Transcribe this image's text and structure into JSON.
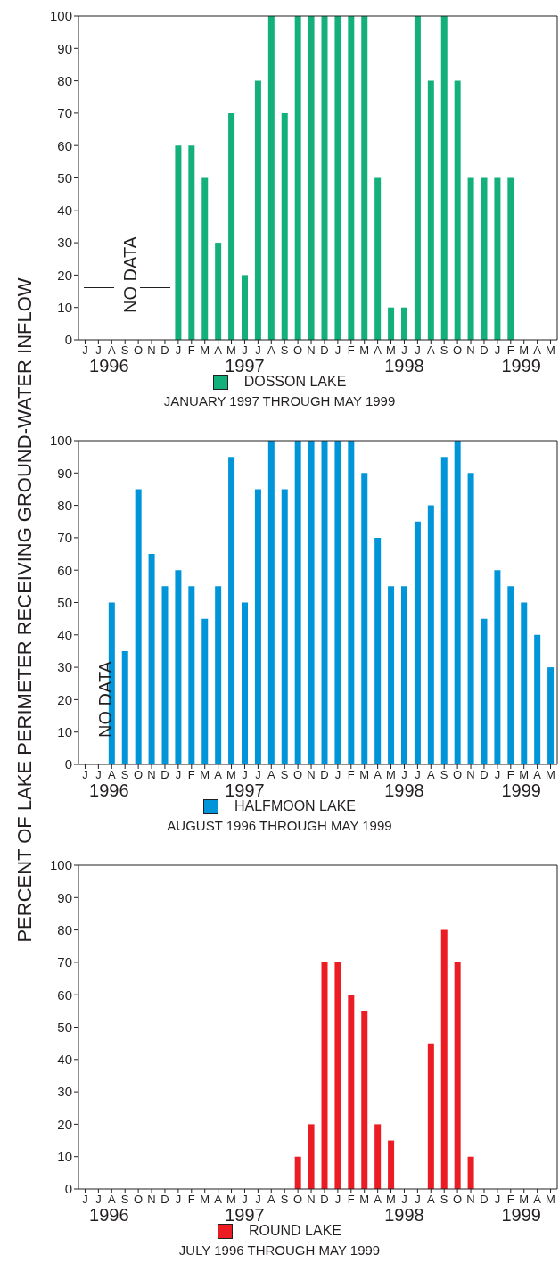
{
  "chart_data": [
    {
      "type": "bar",
      "ylabel": "PERCENT OF LAKE PERIMETER RECEIVING GROUND-WATER INFLOW",
      "subtitle": "JANUARY 1997 THROUGH MAY 1999",
      "categories": [
        "J",
        "J",
        "A",
        "S",
        "O",
        "N",
        "D",
        "J",
        "F",
        "M",
        "A",
        "M",
        "J",
        "J",
        "A",
        "S",
        "O",
        "N",
        "D",
        "J",
        "F",
        "M",
        "A",
        "M",
        "J",
        "J",
        "A",
        "S",
        "O",
        "N",
        "D",
        "J",
        "F",
        "M",
        "A",
        "M"
      ],
      "series": [
        {
          "name": "DOSSON LAKE",
          "color": "#13b07b",
          "values": [
            null,
            null,
            null,
            null,
            null,
            null,
            null,
            60,
            60,
            50,
            30,
            70,
            20,
            80,
            100,
            70,
            100,
            100,
            100,
            100,
            100,
            100,
            50,
            10,
            10,
            100,
            80,
            100,
            80,
            50,
            50,
            50,
            50,
            null,
            null,
            null
          ]
        }
      ],
      "ylim": [
        0,
        100
      ],
      "yticks": [
        0,
        10,
        20,
        30,
        40,
        50,
        60,
        70,
        80,
        90,
        100
      ],
      "legend": "bottom",
      "annotations": [
        "NO DATA",
        "1996",
        "1997",
        "1998",
        "1999"
      ]
    },
    {
      "type": "bar",
      "subtitle": "AUGUST 1996 THROUGH  MAY 1999",
      "categories": [
        "J",
        "J",
        "A",
        "S",
        "O",
        "N",
        "D",
        "J",
        "F",
        "M",
        "A",
        "M",
        "J",
        "J",
        "A",
        "S",
        "O",
        "N",
        "D",
        "J",
        "F",
        "M",
        "A",
        "M",
        "J",
        "J",
        "A",
        "S",
        "O",
        "N",
        "D",
        "J",
        "F",
        "M",
        "A",
        "M"
      ],
      "series": [
        {
          "name": "HALFMOON LAKE",
          "color": "#0095d9",
          "values": [
            null,
            null,
            50,
            35,
            85,
            65,
            55,
            60,
            55,
            45,
            55,
            95,
            50,
            85,
            100,
            85,
            100,
            100,
            100,
            100,
            100,
            90,
            70,
            55,
            55,
            75,
            80,
            95,
            100,
            90,
            45,
            60,
            55,
            50,
            40,
            30
          ]
        }
      ],
      "ylim": [
        0,
        100
      ],
      "yticks": [
        0,
        10,
        20,
        30,
        40,
        50,
        60,
        70,
        80,
        90,
        100
      ],
      "legend": "bottom",
      "annotations": [
        "NO DATA",
        "1996",
        "1997",
        "1998",
        "1999"
      ]
    },
    {
      "type": "bar",
      "subtitle": "JULY 1996 THROUGH MAY 1999",
      "categories": [
        "J",
        "J",
        "A",
        "S",
        "O",
        "N",
        "D",
        "J",
        "F",
        "M",
        "A",
        "M",
        "J",
        "J",
        "A",
        "S",
        "O",
        "N",
        "D",
        "J",
        "F",
        "M",
        "A",
        "M",
        "J",
        "J",
        "A",
        "S",
        "O",
        "N",
        "D",
        "J",
        "F",
        "M",
        "A",
        "M"
      ],
      "series": [
        {
          "name": "ROUND LAKE",
          "color": "#ec1c24",
          "values": [
            null,
            null,
            null,
            null,
            null,
            null,
            null,
            null,
            null,
            null,
            null,
            null,
            null,
            null,
            null,
            null,
            10,
            20,
            70,
            70,
            60,
            55,
            20,
            15,
            null,
            null,
            45,
            80,
            70,
            10,
            null,
            null,
            null,
            null,
            null,
            null
          ]
        }
      ],
      "ylim": [
        0,
        100
      ],
      "yticks": [
        0,
        10,
        20,
        30,
        40,
        50,
        60,
        70,
        80,
        90,
        100
      ],
      "legend": "bottom",
      "annotations": [
        "1996",
        "1997",
        "1998",
        "1999"
      ]
    }
  ]
}
